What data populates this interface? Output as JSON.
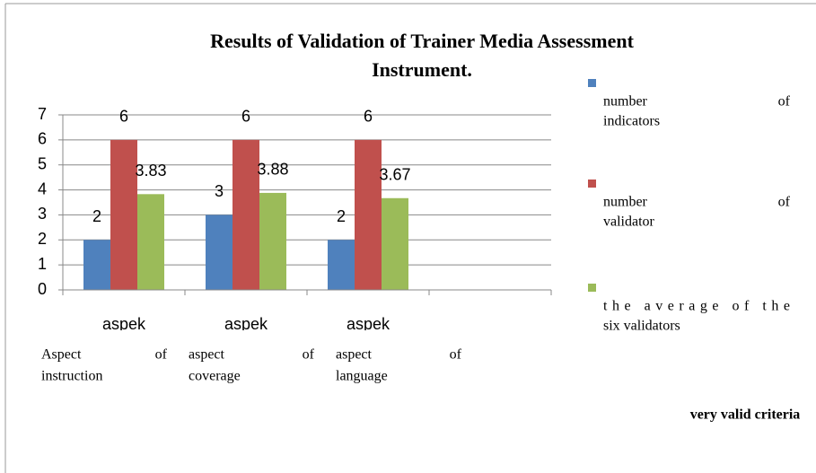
{
  "chart_data": {
    "type": "bar",
    "title": "Results of Validation of Trainer Media Assessment Instrument.",
    "categories": [
      "aspek",
      "aspek",
      "aspek",
      null
    ],
    "category_descriptions": [
      [
        "Aspect",
        "of",
        "instruction"
      ],
      [
        "aspect",
        "of",
        "coverage"
      ],
      [
        "aspect",
        "of",
        "language"
      ]
    ],
    "series": [
      {
        "name": [
          "number",
          "of",
          "indicators"
        ],
        "color": "#4f81bd",
        "values": [
          2,
          3,
          2,
          null
        ]
      },
      {
        "name": [
          "number",
          "of",
          "validator"
        ],
        "color": "#c0504d",
        "values": [
          6,
          6,
          6,
          null
        ]
      },
      {
        "name": [
          "the average of the",
          "six validators"
        ],
        "color": "#9bbb59",
        "values": [
          3.83,
          3.88,
          3.67,
          null
        ]
      }
    ],
    "ylim": [
      0,
      7
    ],
    "yticks": [
      0,
      1,
      2,
      3,
      4,
      5,
      6,
      7
    ],
    "grid": true,
    "legend": "right",
    "note": "very valid criteria"
  }
}
